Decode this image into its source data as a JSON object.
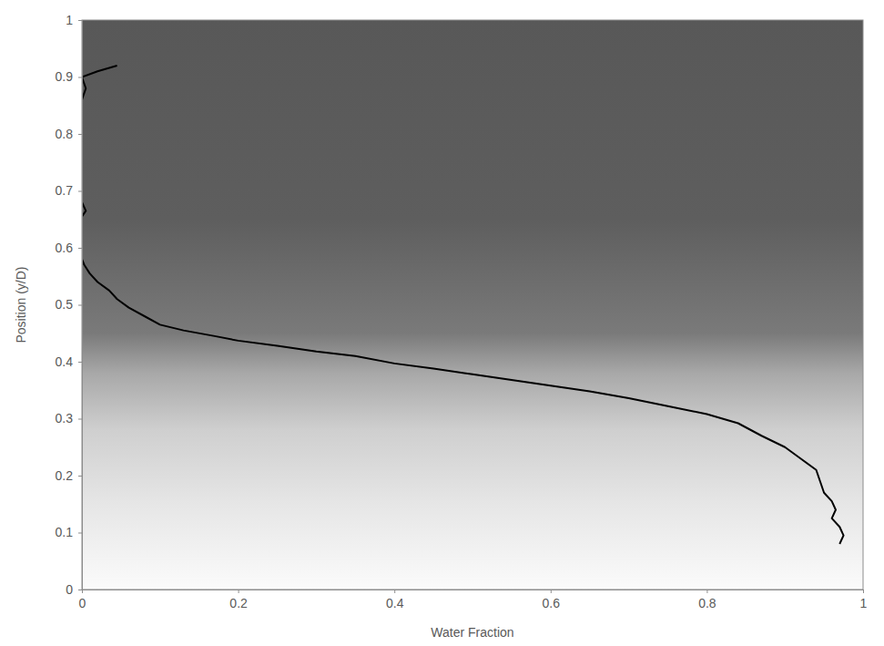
{
  "chart_data": {
    "type": "line",
    "x_label": "Water Fraction",
    "y_label": "Position (y/D)",
    "x": [
      0.045,
      0.02,
      0.0,
      0.005,
      0.0,
      0.0,
      0.005,
      0.0,
      0.0,
      0.003,
      0.01,
      0.02,
      0.035,
      0.045,
      0.06,
      0.08,
      0.1,
      0.13,
      0.17,
      0.2,
      0.25,
      0.3,
      0.35,
      0.4,
      0.45,
      0.5,
      0.55,
      0.6,
      0.65,
      0.7,
      0.75,
      0.8,
      0.84,
      0.87,
      0.9,
      0.92,
      0.94,
      0.945,
      0.95,
      0.96,
      0.965,
      0.96,
      0.97,
      0.975,
      0.97
    ],
    "series": [
      {
        "color": "#000000",
        "values": [
          0.92,
          0.91,
          0.9,
          0.88,
          0.86,
          0.68,
          0.665,
          0.655,
          0.58,
          0.57,
          0.555,
          0.54,
          0.525,
          0.51,
          0.495,
          0.48,
          0.465,
          0.455,
          0.445,
          0.437,
          0.428,
          0.418,
          0.41,
          0.397,
          0.388,
          0.378,
          0.368,
          0.358,
          0.348,
          0.336,
          0.322,
          0.308,
          0.292,
          0.27,
          0.25,
          0.23,
          0.21,
          0.19,
          0.17,
          0.155,
          0.14,
          0.125,
          0.11,
          0.095,
          0.08
        ]
      }
    ],
    "xlim": [
      0,
      1
    ],
    "ylim": [
      0,
      1
    ],
    "xticks": [
      0,
      0.2,
      0.4,
      0.6,
      0.8,
      1
    ],
    "yticks": [
      0,
      0.1,
      0.2,
      0.3,
      0.4,
      0.5,
      0.6,
      0.7,
      0.8,
      0.9,
      1
    ],
    "grid": false
  }
}
